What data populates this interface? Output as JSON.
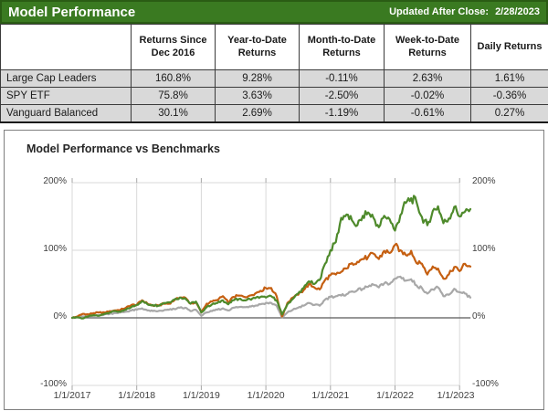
{
  "header": {
    "title": "Model Performance",
    "updated_label": "Updated After Close:",
    "updated_date": "2/28/2023"
  },
  "table": {
    "columns": [
      "",
      "Returns Since Dec 2016",
      "Year-to-Date Returns",
      "Month-to-Date Returns",
      "Week-to-Date Returns",
      "Daily Returns"
    ],
    "rows": [
      {
        "name": "Large Cap Leaders",
        "values": [
          "160.8%",
          "9.28%",
          "-0.11%",
          "2.63%",
          "1.61%"
        ]
      },
      {
        "name": "SPY ETF",
        "values": [
          "75.8%",
          "3.63%",
          "-2.50%",
          "-0.02%",
          "-0.36%"
        ]
      },
      {
        "name": "Vanguard Balanced",
        "values": [
          "30.1%",
          "2.69%",
          "-1.19%",
          "-0.61%",
          "0.27%"
        ]
      }
    ]
  },
  "chart_data": {
    "type": "line",
    "title": "Model Performance vs Benchmarks",
    "x_start": "12/2016",
    "x_end": "2/2023",
    "x_interval": "monthly",
    "x_tick_labels": [
      "1/1/2017",
      "1/1/2018",
      "1/1/2019",
      "1/1/2020",
      "1/1/2021",
      "1/1/2022",
      "1/1/2023"
    ],
    "y_tick_labels": [
      "200%",
      "100%",
      "0%",
      "-100%"
    ],
    "y_ticks": [
      200,
      100,
      0,
      -100
    ],
    "ylim": [
      -100,
      200
    ],
    "y_axis_sides": "both",
    "grid": true,
    "legend": "none",
    "colors": {
      "grid": "#d9d9d9",
      "zero_line": "#595959",
      "axis_tick": "#a6a6a6",
      "axis_text": "#404040"
    },
    "series": [
      {
        "name": "Large Cap Leaders",
        "color": "#4e8a2b",
        "values": [
          0,
          1,
          -1,
          2,
          4,
          3,
          6,
          8,
          10,
          9,
          12,
          16,
          19,
          25,
          20,
          19,
          18,
          22,
          23,
          27,
          30,
          29,
          21,
          24,
          8,
          16,
          20,
          22,
          26,
          20,
          26,
          28,
          26,
          28,
          29,
          31,
          30,
          32,
          26,
          5,
          20,
          28,
          36,
          44,
          54,
          50,
          56,
          80,
          100,
          112,
          148,
          153,
          144,
          137,
          151,
          156,
          148,
          134,
          151,
          146,
          129,
          152,
          170,
          177,
          171,
          149,
          137,
          158,
          165,
          140,
          147,
          164,
          150,
          157,
          161
        ]
      },
      {
        "name": "SPY ETF",
        "color": "#c55f11",
        "values": [
          0,
          2,
          6,
          5,
          7,
          8,
          8,
          10,
          11,
          12,
          15,
          19,
          19,
          26,
          21,
          18,
          18,
          21,
          21,
          26,
          30,
          30,
          21,
          23,
          8,
          21,
          24,
          26,
          32,
          23,
          31,
          33,
          31,
          33,
          36,
          40,
          44,
          44,
          32,
          2,
          22,
          30,
          34,
          41,
          50,
          45,
          42,
          56,
          63,
          64,
          68,
          73,
          81,
          83,
          87,
          90,
          95,
          87,
          99,
          96,
          108,
          100,
          93,
          99,
          81,
          80,
          64,
          76,
          73,
          58,
          64,
          75,
          69,
          80,
          76
        ]
      },
      {
        "name": "Vanguard Balanced",
        "color": "#a8a8a8",
        "values": [
          0,
          1,
          2,
          2,
          3,
          4,
          5,
          6,
          7,
          8,
          9,
          11,
          12,
          14,
          11,
          10,
          10,
          11,
          12,
          13,
          15,
          15,
          10,
          12,
          3,
          8,
          10,
          12,
          14,
          11,
          15,
          16,
          16,
          17,
          18,
          20,
          22,
          22,
          18,
          0,
          8,
          12,
          15,
          18,
          22,
          19,
          18,
          27,
          31,
          32,
          33,
          35,
          39,
          41,
          43,
          46,
          49,
          45,
          51,
          50,
          58,
          61,
          55,
          57,
          48,
          44,
          36,
          42,
          45,
          32,
          34,
          43,
          38,
          36,
          30
        ]
      }
    ]
  }
}
